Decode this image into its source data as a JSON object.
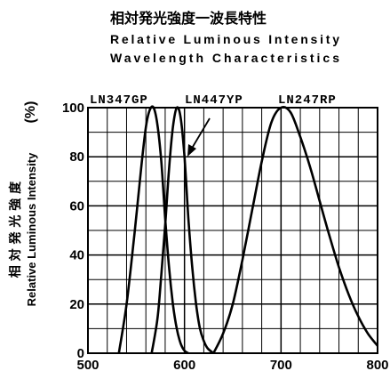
{
  "chart_data": {
    "type": "line",
    "title_jp": "相対発光強度一波長特性",
    "title_en_line1": "Relative Luminous Intensity",
    "title_en_line2": "Wavelength Characteristics",
    "ylabel_jp": "相 対 発 光 強 度",
    "ylabel_en": "Relative Luminous Intensity",
    "ylabel_unit": "(%)",
    "xlabel": "",
    "xlim": [
      500,
      800
    ],
    "ylim": [
      0,
      100
    ],
    "xticks": [
      500,
      600,
      700,
      800
    ],
    "yticks": [
      0,
      20,
      40,
      60,
      80,
      100
    ],
    "grid": true,
    "series": [
      {
        "name": "LN347GP",
        "x": [
          532,
          540,
          548,
          555,
          560,
          564,
          568,
          572,
          576,
          580,
          584,
          588,
          592,
          596,
          600,
          604
        ],
        "y": [
          0,
          20,
          48,
          75,
          92,
          99,
          100,
          93,
          78,
          55,
          35,
          20,
          10,
          4,
          1,
          0
        ]
      },
      {
        "name": "LN447YP",
        "x": [
          566,
          572,
          576,
          580,
          584,
          588,
          592,
          596,
          600,
          604,
          608,
          612,
          616,
          620,
          624,
          630
        ],
        "y": [
          0,
          14,
          32,
          52,
          75,
          92,
          100,
          96,
          80,
          55,
          35,
          20,
          10,
          5,
          2,
          0
        ]
      },
      {
        "name": "LN247RP",
        "x": [
          630,
          640,
          650,
          660,
          670,
          680,
          690,
          700,
          710,
          720,
          730,
          740,
          750,
          760,
          770,
          780,
          790,
          800
        ],
        "y": [
          0,
          8,
          20,
          38,
          58,
          78,
          94,
          100,
          98,
          88,
          76,
          62,
          48,
          35,
          24,
          15,
          8,
          3
        ]
      }
    ]
  }
}
